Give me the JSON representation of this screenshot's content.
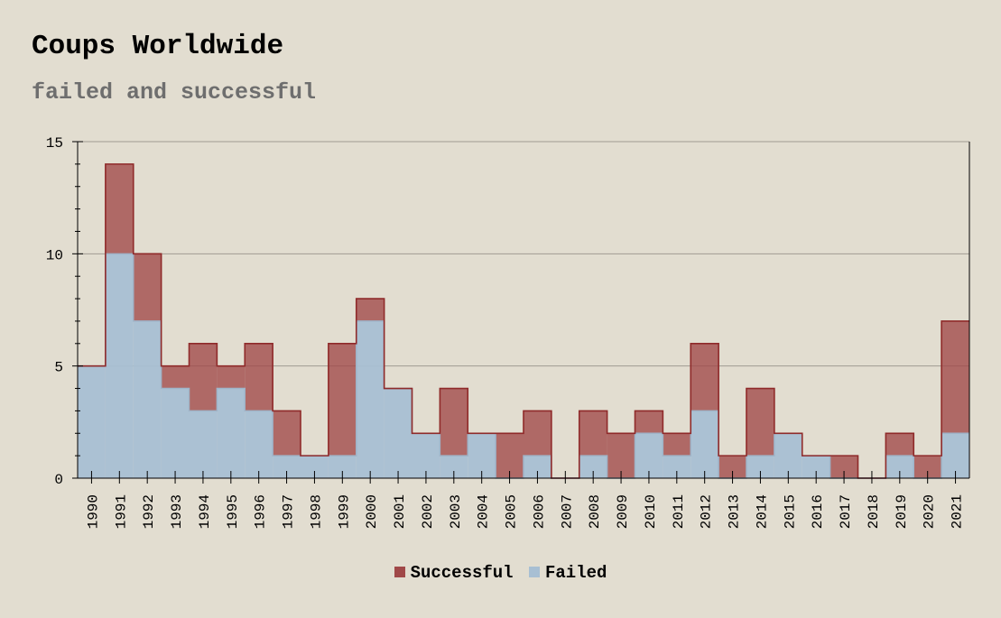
{
  "chart_data": {
    "type": "area",
    "title": "Coups Worldwide",
    "subtitle": "failed and successful",
    "xlabel": "",
    "ylabel": "",
    "ylim": [
      0,
      15
    ],
    "yticks": [
      0,
      5,
      10,
      15
    ],
    "stacked": true,
    "step": true,
    "grid": "horizontal",
    "legend_position": "bottom",
    "categories": [
      "1990",
      "1991",
      "1992",
      "1993",
      "1994",
      "1995",
      "1996",
      "1997",
      "1998",
      "1999",
      "2000",
      "2001",
      "2002",
      "2003",
      "2004",
      "2005",
      "2006",
      "2007",
      "2008",
      "2009",
      "2010",
      "2011",
      "2012",
      "2013",
      "2014",
      "2015",
      "2016",
      "2017",
      "2018",
      "2019",
      "2020",
      "2021"
    ],
    "series": [
      {
        "name": "Failed",
        "color": "#a8bfd3",
        "values": [
          5,
          10,
          7,
          4,
          3,
          4,
          3,
          1,
          1,
          1,
          7,
          4,
          2,
          1,
          2,
          0,
          1,
          0,
          1,
          0,
          2,
          1,
          3,
          0,
          1,
          2,
          1,
          0,
          0,
          1,
          0,
          2
        ]
      },
      {
        "name": "Successful",
        "color": "#a04848",
        "values": [
          0,
          4,
          3,
          1,
          3,
          1,
          3,
          2,
          0,
          5,
          1,
          0,
          0,
          3,
          0,
          2,
          2,
          0,
          2,
          2,
          1,
          1,
          3,
          1,
          3,
          0,
          0,
          1,
          0,
          1,
          1,
          5
        ]
      }
    ],
    "legend": [
      "Successful",
      "Failed"
    ]
  }
}
